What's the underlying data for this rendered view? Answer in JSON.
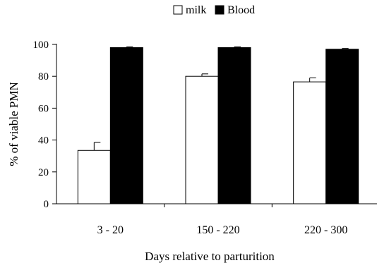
{
  "chart_data": {
    "type": "bar",
    "title": "",
    "xlabel": "Days relative to parturition",
    "ylabel": "% of viable PMN",
    "ylim": [
      0,
      100
    ],
    "yticks": [
      0,
      20,
      40,
      60,
      80,
      100
    ],
    "categories": [
      "3 - 20",
      "150 - 220",
      "220 - 300"
    ],
    "series": [
      {
        "name": "milk",
        "values": [
          33.5,
          80.0,
          76.5
        ],
        "errors": [
          5.0,
          1.5,
          2.5
        ],
        "color": "#ffffff"
      },
      {
        "name": "Blood",
        "values": [
          98.0,
          98.0,
          97.0
        ],
        "errors": [
          0.5,
          0.5,
          0.5
        ],
        "color": "#000000"
      }
    ],
    "legend": "top-center",
    "grid": false
  }
}
